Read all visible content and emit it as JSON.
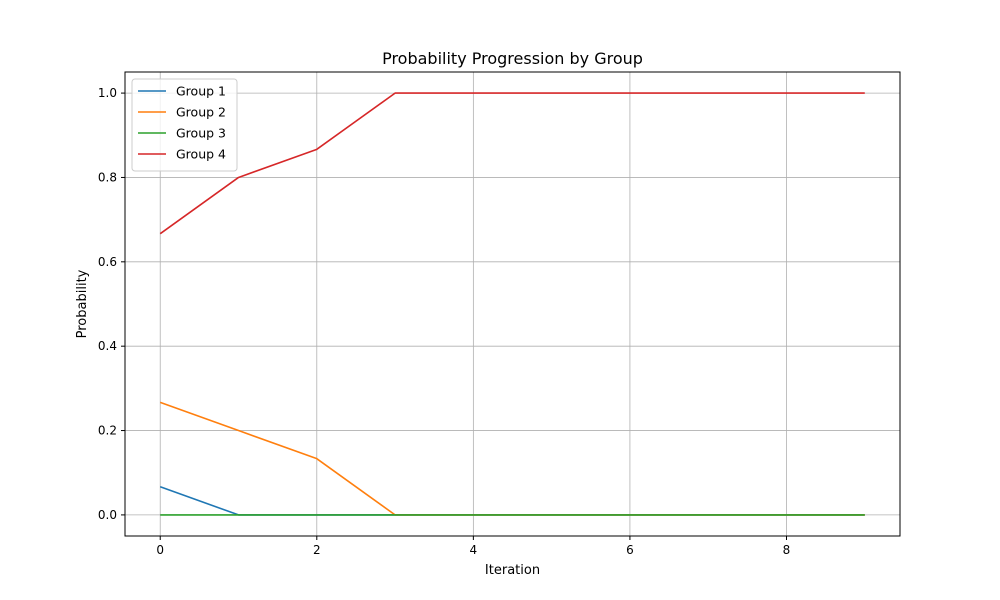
{
  "chart_data": {
    "type": "line",
    "title": "Probability Progression by Group",
    "xlabel": "Iteration",
    "ylabel": "Probability",
    "xlim": [
      -0.45,
      9.45
    ],
    "ylim": [
      -0.05,
      1.05
    ],
    "xticks": [
      0,
      2,
      4,
      6,
      8
    ],
    "yticks": [
      0.0,
      0.2,
      0.4,
      0.6,
      0.8,
      1.0
    ],
    "xtick_labels": [
      "0",
      "2",
      "4",
      "6",
      "8"
    ],
    "ytick_labels": [
      "0.0",
      "0.2",
      "0.4",
      "0.6",
      "0.8",
      "1.0"
    ],
    "grid": true,
    "legend_position": "top-left",
    "x": [
      0,
      1,
      2,
      3,
      4,
      5,
      6,
      7,
      8,
      9
    ],
    "series": [
      {
        "name": "Group 1",
        "color": "#1f77b4",
        "values": [
          0.0667,
          0,
          0,
          0,
          0,
          0,
          0,
          0,
          0,
          0
        ]
      },
      {
        "name": "Group 2",
        "color": "#ff7f0e",
        "values": [
          0.2667,
          0.2,
          0.1333,
          0,
          0,
          0,
          0,
          0,
          0,
          0
        ]
      },
      {
        "name": "Group 3",
        "color": "#2ca02c",
        "values": [
          0,
          0,
          0,
          0,
          0,
          0,
          0,
          0,
          0,
          0
        ]
      },
      {
        "name": "Group 4",
        "color": "#d62728",
        "values": [
          0.6667,
          0.8,
          0.8667,
          1.0,
          1.0,
          1.0,
          1.0,
          1.0,
          1.0,
          1.0
        ]
      }
    ]
  }
}
